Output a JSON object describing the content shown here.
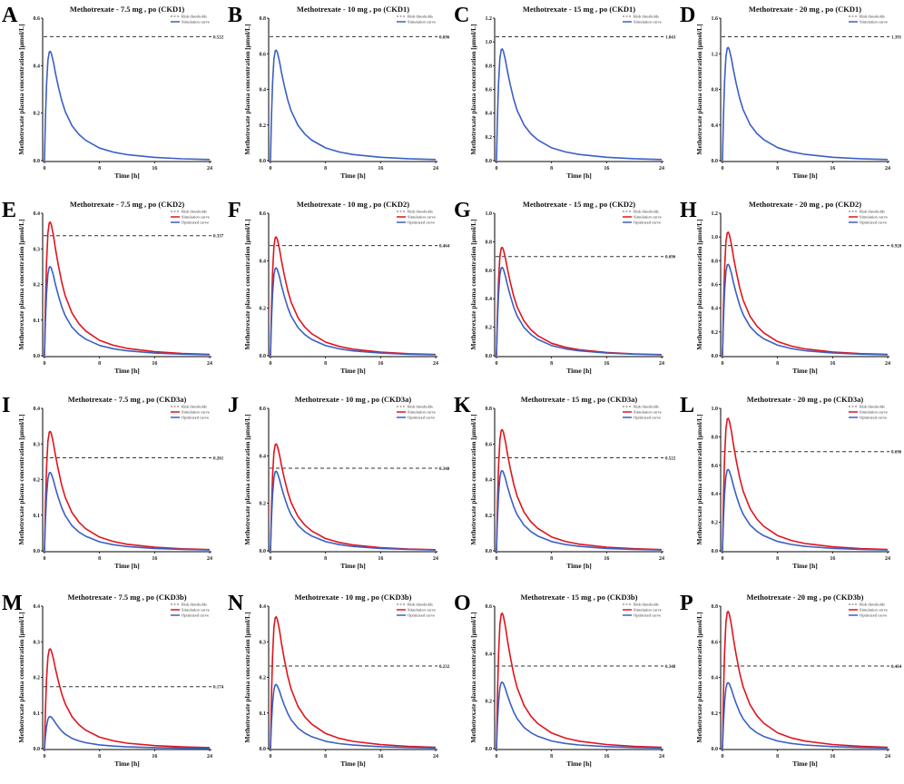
{
  "chart_data": {
    "type": "line",
    "xlabel": "Time [h]",
    "ylabel": "Methotrexate plasma concentration [μmol/L]",
    "xlim": [
      0,
      24
    ],
    "xticks": [
      0,
      8,
      16,
      24
    ],
    "legend_labels": {
      "threshold": "Risk thresholds",
      "simulation": "Simulation curve",
      "optimized": "Optimized curve"
    },
    "legend_placement": "top-right",
    "colors": {
      "simulation_single": "#3a5fc4",
      "simulation": "#e0141c",
      "optimized": "#3a5fc4",
      "threshold": "#333333"
    },
    "time_points": [
      0,
      0.15,
      0.3,
      0.5,
      0.7,
      0.85,
      1,
      1.3,
      1.6,
      2,
      2.5,
      3,
      4,
      5,
      6,
      8,
      10,
      12,
      16,
      20,
      24
    ],
    "normalized_profile": [
      0,
      0.4,
      0.7,
      0.92,
      0.995,
      1.0,
      0.98,
      0.9,
      0.8,
      0.68,
      0.55,
      0.45,
      0.32,
      0.24,
      0.185,
      0.115,
      0.078,
      0.055,
      0.03,
      0.017,
      0.01
    ],
    "panels": [
      {
        "letter": "A",
        "title": "Methotrexate - 7.5 mg , po (CKD1)",
        "ylim": [
          0,
          0.6
        ],
        "yticks": [
          "0.0",
          "0.2",
          "0.4",
          "0.6"
        ],
        "threshold": 0.522,
        "threshold_label": "0.522",
        "simulation_peak": 0.46
      },
      {
        "letter": "B",
        "title": "Methotrexate - 10 mg , po (CKD1)",
        "ylim": [
          0,
          0.8
        ],
        "yticks": [
          "0.0",
          "0.2",
          "0.4",
          "0.6",
          "0.8"
        ],
        "threshold": 0.696,
        "threshold_label": "0.696",
        "simulation_peak": 0.62
      },
      {
        "letter": "C",
        "title": "Methotrexate - 15 mg , po (CKD1)",
        "ylim": [
          0,
          1.2
        ],
        "yticks": [
          "0.0",
          "0.2",
          "0.4",
          "0.6",
          "0.8",
          "1.0",
          "1.2"
        ],
        "threshold": 1.043,
        "threshold_label": "1.043",
        "simulation_peak": 0.94
      },
      {
        "letter": "D",
        "title": "Methotrexate - 20 mg , po (CKD1)",
        "ylim": [
          0,
          1.6
        ],
        "yticks": [
          "0.0",
          "0.4",
          "0.8",
          "1.2",
          "1.6"
        ],
        "threshold": 1.391,
        "threshold_label": "1.391",
        "simulation_peak": 1.27
      },
      {
        "letter": "E",
        "title": "Methotrexate - 7.5 mg , po (CKD2)",
        "ylim": [
          0,
          0.4
        ],
        "yticks": [
          "0.0",
          "0.1",
          "0.2",
          "0.3",
          "0.4"
        ],
        "threshold": 0.337,
        "threshold_label": "0.337",
        "simulation_peak": 0.375,
        "optimized_peak": 0.25
      },
      {
        "letter": "F",
        "title": "Methotrexate - 10 mg , po (CKD2)",
        "ylim": [
          0,
          0.6
        ],
        "yticks": [
          "0.0",
          "0.2",
          "0.4",
          "0.6"
        ],
        "threshold": 0.464,
        "threshold_label": "0.464",
        "simulation_peak": 0.5,
        "optimized_peak": 0.37
      },
      {
        "letter": "G",
        "title": "Methotrexate - 15 mg , po (CKD2)",
        "ylim": [
          0,
          1.0
        ],
        "yticks": [
          "0.0",
          "0.2",
          "0.4",
          "0.6",
          "0.8",
          "1.0"
        ],
        "threshold": 0.696,
        "threshold_label": "0.696",
        "simulation_peak": 0.76,
        "optimized_peak": 0.62
      },
      {
        "letter": "H",
        "title": "Methotrexate - 20 mg , po (CKD2)",
        "ylim": [
          0,
          1.2
        ],
        "yticks": [
          "0.0",
          "0.2",
          "0.4",
          "0.6",
          "0.8",
          "1.0",
          "1.2"
        ],
        "threshold": 0.928,
        "threshold_label": "0.928",
        "simulation_peak": 1.04,
        "optimized_peak": 0.77
      },
      {
        "letter": "I",
        "title": "Methotrexate - 7.5 mg , po (CKD3a)",
        "ylim": [
          0,
          0.4
        ],
        "yticks": [
          "0.0",
          "0.1",
          "0.2",
          "0.3",
          "0.4"
        ],
        "threshold": 0.261,
        "threshold_label": "0.261",
        "simulation_peak": 0.335,
        "optimized_peak": 0.22
      },
      {
        "letter": "J",
        "title": "Methotrexate - 10 mg , po (CKD3a)",
        "ylim": [
          0,
          0.6
        ],
        "yticks": [
          "0.0",
          "0.2",
          "0.4",
          "0.6"
        ],
        "threshold": 0.348,
        "threshold_label": "0.348",
        "simulation_peak": 0.45,
        "optimized_peak": 0.335
      },
      {
        "letter": "K",
        "title": "Methotrexate - 15 mg , po (CKD3a)",
        "ylim": [
          0,
          0.8
        ],
        "yticks": [
          "0.0",
          "0.2",
          "0.4",
          "0.6",
          "0.8"
        ],
        "threshold": 0.522,
        "threshold_label": "0.522",
        "simulation_peak": 0.68,
        "optimized_peak": 0.45
      },
      {
        "letter": "L",
        "title": "Methotrexate - 20 mg , po (CKD3a)",
        "ylim": [
          0,
          1.0
        ],
        "yticks": [
          "0.0",
          "0.2",
          "0.4",
          "0.6",
          "0.8",
          "1.0"
        ],
        "threshold": 0.696,
        "threshold_label": "0.696",
        "simulation_peak": 0.93,
        "optimized_peak": 0.57
      },
      {
        "letter": "M",
        "title": "Methotrexate - 7.5 mg , po (CKD3b)",
        "ylim": [
          0,
          0.4
        ],
        "yticks": [
          "0.0",
          "0.1",
          "0.2",
          "0.3",
          "0.4"
        ],
        "threshold": 0.174,
        "threshold_label": "0.174",
        "simulation_peak": 0.28,
        "optimized_peak": 0.09
      },
      {
        "letter": "N",
        "title": "Methotrexate - 10 mg , po (CKD3b)",
        "ylim": [
          0,
          0.4
        ],
        "yticks": [
          "0.0",
          "0.1",
          "0.2",
          "0.3",
          "0.4"
        ],
        "threshold": 0.232,
        "threshold_label": "0.232",
        "simulation_peak": 0.37,
        "optimized_peak": 0.18
      },
      {
        "letter": "O",
        "title": "Methotrexate - 15 mg , po (CKD3b)",
        "ylim": [
          0,
          0.6
        ],
        "yticks": [
          "0.0",
          "0.2",
          "0.4",
          "0.6"
        ],
        "threshold": 0.348,
        "threshold_label": "0.348",
        "simulation_peak": 0.57,
        "optimized_peak": 0.28
      },
      {
        "letter": "P",
        "title": "Methotrexate - 20 mg , po (CKD3b)",
        "ylim": [
          0,
          0.8
        ],
        "yticks": [
          "0.0",
          "0.2",
          "0.4",
          "0.6",
          "0.8"
        ],
        "threshold": 0.464,
        "threshold_label": "0.464",
        "simulation_peak": 0.77,
        "optimized_peak": 0.37
      }
    ]
  }
}
